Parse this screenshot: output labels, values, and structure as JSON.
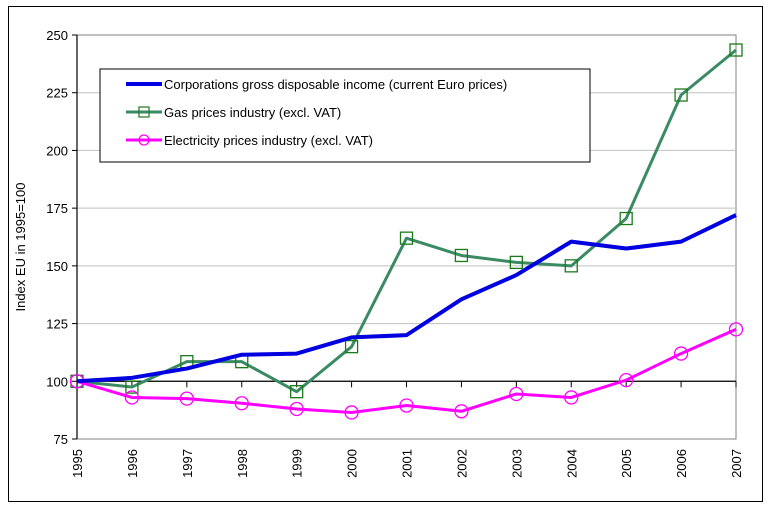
{
  "chart_data": {
    "type": "line",
    "title": "",
    "xlabel": "",
    "ylabel": "Index EU in 1995=100",
    "x": [
      "1995",
      "1996",
      "1997",
      "1998",
      "1999",
      "2000",
      "2001",
      "2002",
      "2003",
      "2004",
      "2005",
      "2006",
      "2007"
    ],
    "ylim": [
      75,
      250
    ],
    "yticks": [
      75,
      100,
      125,
      150,
      175,
      200,
      225,
      250
    ],
    "ytick_labels": [
      "75",
      "100",
      "125",
      "150",
      "175",
      "200",
      "225",
      "250"
    ],
    "x_axis_crosses_at": 100,
    "grid": true,
    "legend_position": "top-left",
    "series": [
      {
        "name": "Corporations gross disposable income (current Euro prices)",
        "color": "#0000e0",
        "marker": "none",
        "values": [
          100,
          101.5,
          105.5,
          111.5,
          112,
          119,
          120,
          135.5,
          146,
          160.5,
          157.5,
          160.5,
          172
        ]
      },
      {
        "name": "Gas prices industry (excl. VAT)",
        "color": "#3a8a64",
        "marker": "square",
        "marker_color": "#1a7a1a",
        "values": [
          100,
          97.5,
          108.5,
          108.5,
          95.5,
          115,
          162,
          154.5,
          151.5,
          150,
          170.5,
          224,
          243.5
        ]
      },
      {
        "name": "Electricity prices industry (excl. VAT)",
        "color": "#ff00ff",
        "marker": "circle",
        "marker_color": "#ff00ff",
        "values": [
          100,
          93,
          92.5,
          90.5,
          88,
          86.5,
          89.5,
          87,
          94.5,
          93,
          100.5,
          112,
          122.5
        ]
      }
    ]
  }
}
